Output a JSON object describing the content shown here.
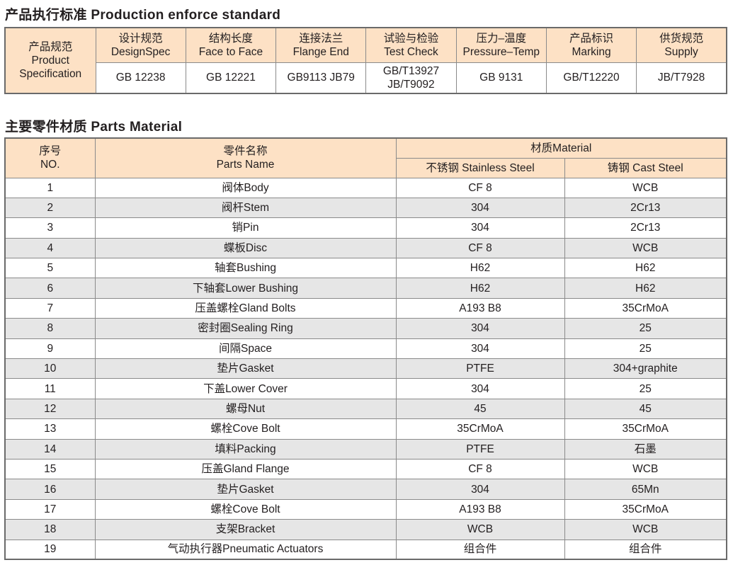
{
  "standard": {
    "title": "产品执行标准 Production enforce standard",
    "row_header": [
      "产品规范",
      "Product",
      "Specification"
    ],
    "columns": [
      {
        "cn": "设计规范",
        "en": "DesignSpec",
        "value": [
          "GB 12238"
        ]
      },
      {
        "cn": "结构长度",
        "en": "Face to Face",
        "value": [
          "GB 12221"
        ]
      },
      {
        "cn": "连接法兰",
        "en": "Flange End",
        "value": [
          "GB9113 JB79"
        ]
      },
      {
        "cn": "试验与检验",
        "en": "Test Check",
        "value": [
          "GB/T13927",
          "JB/T9092"
        ]
      },
      {
        "cn": "压力–温度",
        "en": "Pressure–Temp",
        "value": [
          "GB 9131"
        ]
      },
      {
        "cn": "产品标识",
        "en": "Marking",
        "value": [
          "GB/T12220"
        ]
      },
      {
        "cn": "供货规范",
        "en": "Supply",
        "value": [
          "JB/T7928"
        ]
      }
    ]
  },
  "parts": {
    "title": "主要零件材质 Parts Material",
    "headers": {
      "no_cn": "序号",
      "no_en": "NO.",
      "name_cn": "零件名称",
      "name_en": "Parts Name",
      "material": "材质Material",
      "stainless": "不锈钢 Stainless Steel",
      "cast": "铸钢 Cast Steel"
    },
    "rows": [
      [
        "1",
        "阀体Body",
        "CF 8",
        "WCB"
      ],
      [
        "2",
        "阀杆Stem",
        "304",
        "2Cr13"
      ],
      [
        "3",
        "销Pin",
        "304",
        "2Cr13"
      ],
      [
        "4",
        "蝶板Disc",
        "CF 8",
        "WCB"
      ],
      [
        "5",
        "轴套Bushing",
        "H62",
        "H62"
      ],
      [
        "6",
        "下轴套Lower Bushing",
        "H62",
        "H62"
      ],
      [
        "7",
        "压盖螺栓Gland Bolts",
        "A193 B8",
        "35CrMoA"
      ],
      [
        "8",
        "密封圈Sealing Ring",
        "304",
        "25"
      ],
      [
        "9",
        "间隔Space",
        "304",
        "25"
      ],
      [
        "10",
        "垫片Gasket",
        "PTFE",
        "304+graphite"
      ],
      [
        "11",
        "下盖Lower Cover",
        "304",
        "25"
      ],
      [
        "12",
        "螺母Nut",
        "45",
        "45"
      ],
      [
        "13",
        "螺栓Cove Bolt",
        "35CrMoA",
        "35CrMoA"
      ],
      [
        "14",
        "填料Packing",
        "PTFE",
        "石墨"
      ],
      [
        "15",
        "压盖Gland Flange",
        "CF 8",
        "WCB"
      ],
      [
        "16",
        "垫片Gasket",
        "304",
        "65Mn"
      ],
      [
        "17",
        "螺栓Cove Bolt",
        "A193 B8",
        "35CrMoA"
      ],
      [
        "18",
        "支架Bracket",
        "WCB",
        "WCB"
      ],
      [
        "19",
        "气动执行器Pneumatic Actuators",
        "组合件",
        "组合件"
      ]
    ]
  },
  "colors": {
    "header_fill": "#fde1c5",
    "alt_row": "#e6e6e6",
    "border": "#8a8a8a"
  }
}
